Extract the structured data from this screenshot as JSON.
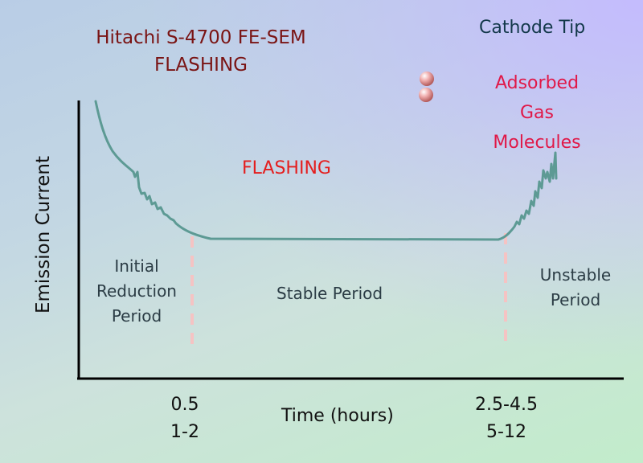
{
  "header": {
    "title_line1": "Hitachi S-4700 FE-SEM",
    "title_line2": "FLASHING"
  },
  "legend": {
    "cathode_label": "Cathode Tip",
    "adsorbed_label": "Adsorbed Gas Molecules",
    "molecule_color": "#f0a8a8"
  },
  "annotation": {
    "flashing_label": "FLASHING",
    "flashing_color": "#e41e1e"
  },
  "periods": {
    "initial": [
      "Initial",
      "Reduction",
      "Period"
    ],
    "stable": "Stable Period",
    "unstable": [
      "Unstable",
      "Period"
    ]
  },
  "axes": {
    "ylabel": "Emission Current",
    "xlabel": "Time (hours)"
  },
  "ticks": [
    {
      "line1": "0.5",
      "line2": "1-2"
    },
    {
      "line1": "2.5-4.5",
      "line2": "5-12"
    }
  ],
  "colors": {
    "curve": "#5d9a94",
    "divider": "#f5c3c3",
    "axis": "#000000"
  }
}
